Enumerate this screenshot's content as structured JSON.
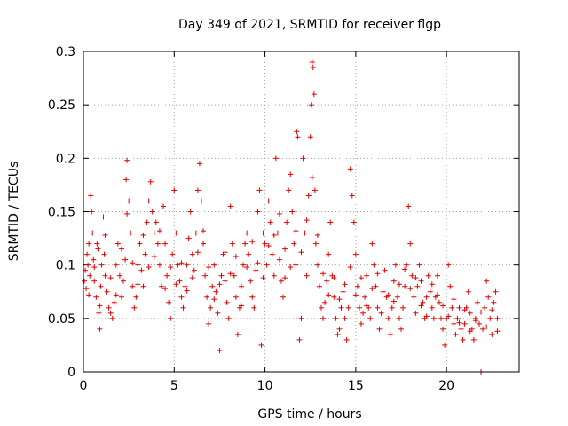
{
  "chart_data": {
    "type": "scatter",
    "title": "Day 349 of 2021, SRMTID for receiver flgp",
    "xlabel": "GPS time / hours",
    "ylabel": "SRMTID / TECUs",
    "xlim": [
      0,
      24
    ],
    "ylim": [
      0,
      0.3
    ],
    "x_ticks": [
      "0",
      "5",
      "10",
      "15",
      "20"
    ],
    "y_ticks": [
      "0",
      "0.05",
      "0.1",
      "0.15",
      "0.2",
      "0.25",
      "0.3"
    ],
    "grid": true,
    "legend": "none",
    "marker": "+",
    "color": "#e00000",
    "series": [
      {
        "points": [
          [
            0.05,
            0.085
          ],
          [
            0.1,
            0.095
          ],
          [
            0.15,
            0.078
          ],
          [
            0.2,
            0.11
          ],
          [
            0.25,
            0.1
          ],
          [
            0.3,
            0.12
          ],
          [
            0.35,
            0.09
          ],
          [
            0.4,
            0.165
          ],
          [
            0.45,
            0.15
          ],
          [
            0.5,
            0.13
          ],
          [
            0.55,
            0.105
          ],
          [
            0.6,
            0.085
          ],
          [
            0.7,
            0.07
          ],
          [
            0.75,
            0.12
          ],
          [
            0.8,
            0.115
          ],
          [
            0.85,
            0.055
          ],
          [
            0.9,
            0.04
          ],
          [
            0.95,
            0.08
          ],
          [
            1.0,
            0.1
          ],
          [
            1.1,
            0.145
          ],
          [
            1.15,
            0.11
          ],
          [
            1.2,
            0.09
          ],
          [
            1.3,
            0.075
          ],
          [
            1.4,
            0.06
          ],
          [
            1.5,
            0.055
          ],
          [
            1.6,
            0.05
          ],
          [
            1.7,
            0.065
          ],
          [
            1.8,
            0.1
          ],
          [
            1.9,
            0.12
          ],
          [
            2.0,
            0.09
          ],
          [
            2.1,
            0.07
          ],
          [
            2.2,
            0.085
          ],
          [
            2.3,
            0.105
          ],
          [
            2.35,
            0.18
          ],
          [
            2.4,
            0.198
          ],
          [
            2.5,
            0.16
          ],
          [
            2.6,
            0.13
          ],
          [
            2.7,
            0.08
          ],
          [
            2.8,
            0.06
          ],
          [
            2.9,
            0.07
          ],
          [
            3.0,
            0.1
          ],
          [
            3.1,
            0.12
          ],
          [
            3.2,
            0.095
          ],
          [
            3.3,
            0.08
          ],
          [
            3.4,
            0.11
          ],
          [
            3.5,
            0.14
          ],
          [
            3.6,
            0.16
          ],
          [
            3.7,
            0.178
          ],
          [
            3.8,
            0.15
          ],
          [
            3.9,
            0.13
          ],
          [
            4.0,
            0.14
          ],
          [
            4.1,
            0.12
          ],
          [
            4.2,
            0.1
          ],
          [
            4.3,
            0.08
          ],
          [
            4.4,
            0.155
          ],
          [
            4.5,
            0.12
          ],
          [
            4.6,
            0.09
          ],
          [
            4.7,
            0.065
          ],
          [
            4.8,
            0.05
          ],
          [
            4.9,
            0.11
          ],
          [
            5.0,
            0.17
          ],
          [
            5.1,
            0.13
          ],
          [
            5.2,
            0.1
          ],
          [
            5.3,
            0.085
          ],
          [
            5.4,
            0.07
          ],
          [
            5.5,
            0.06
          ],
          [
            5.6,
            0.08
          ],
          [
            5.7,
            0.1
          ],
          [
            5.8,
            0.125
          ],
          [
            5.9,
            0.15
          ],
          [
            6.0,
            0.11
          ],
          [
            6.1,
            0.095
          ],
          [
            6.2,
            0.13
          ],
          [
            6.3,
            0.17
          ],
          [
            6.4,
            0.195
          ],
          [
            6.5,
            0.16
          ],
          [
            6.6,
            0.12
          ],
          [
            6.7,
            0.09
          ],
          [
            6.8,
            0.07
          ],
          [
            6.9,
            0.045
          ],
          [
            7.0,
            0.06
          ],
          [
            7.1,
            0.08
          ],
          [
            7.2,
            0.1
          ],
          [
            7.3,
            0.075
          ],
          [
            7.4,
            0.055
          ],
          [
            7.5,
            0.02
          ],
          [
            7.6,
            0.09
          ],
          [
            7.7,
            0.11
          ],
          [
            7.8,
            0.085
          ],
          [
            7.9,
            0.065
          ],
          [
            8.0,
            0.05
          ],
          [
            8.1,
            0.155
          ],
          [
            8.2,
            0.12
          ],
          [
            8.3,
            0.09
          ],
          [
            8.4,
            0.07
          ],
          [
            8.5,
            0.035
          ],
          [
            8.6,
            0.06
          ],
          [
            8.7,
            0.08
          ],
          [
            8.8,
            0.1
          ],
          [
            8.9,
            0.12
          ],
          [
            9.0,
            0.13
          ],
          [
            9.1,
            0.11
          ],
          [
            9.2,
            0.085
          ],
          [
            9.3,
            0.07
          ],
          [
            9.4,
            0.06
          ],
          [
            9.5,
            0.095
          ],
          [
            9.6,
            0.15
          ],
          [
            9.7,
            0.17
          ],
          [
            9.8,
            0.025
          ],
          [
            9.9,
            0.13
          ],
          [
            10.0,
            0.12
          ],
          [
            10.1,
            0.1
          ],
          [
            10.2,
            0.16
          ],
          [
            10.3,
            0.14
          ],
          [
            10.4,
            0.11
          ],
          [
            10.5,
            0.09
          ],
          [
            10.6,
            0.2
          ],
          [
            10.7,
            0.13
          ],
          [
            10.8,
            0.105
          ],
          [
            10.9,
            0.085
          ],
          [
            11.0,
            0.07
          ],
          [
            11.1,
            0.115
          ],
          [
            11.2,
            0.14
          ],
          [
            11.3,
            0.17
          ],
          [
            11.4,
            0.185
          ],
          [
            11.5,
            0.15
          ],
          [
            11.6,
            0.12
          ],
          [
            11.7,
            0.1
          ],
          [
            11.75,
            0.225
          ],
          [
            11.8,
            0.22
          ],
          [
            11.9,
            0.03
          ],
          [
            12.0,
            0.05
          ],
          [
            12.1,
            0.2
          ],
          [
            12.2,
            0.13
          ],
          [
            12.3,
            0.09
          ],
          [
            12.4,
            0.165
          ],
          [
            12.5,
            0.22
          ],
          [
            12.55,
            0.25
          ],
          [
            12.6,
            0.29
          ],
          [
            12.65,
            0.285
          ],
          [
            12.7,
            0.26
          ],
          [
            12.75,
            0.17
          ],
          [
            12.8,
            0.12
          ],
          [
            12.9,
            0.1
          ],
          [
            13.0,
            0.08
          ],
          [
            13.1,
            0.06
          ],
          [
            13.2,
            0.05
          ],
          [
            13.3,
            0.065
          ],
          [
            13.4,
            0.085
          ],
          [
            13.5,
            0.11
          ],
          [
            13.6,
            0.14
          ],
          [
            13.7,
            0.09
          ],
          [
            13.8,
            0.07
          ],
          [
            13.9,
            0.05
          ],
          [
            14.0,
            0.035
          ],
          [
            14.1,
            0.04
          ],
          [
            14.2,
            0.06
          ],
          [
            14.3,
            0.075
          ],
          [
            14.4,
            0.05
          ],
          [
            14.5,
            0.03
          ],
          [
            14.6,
            0.06
          ],
          [
            14.7,
            0.19
          ],
          [
            14.8,
            0.165
          ],
          [
            14.9,
            0.14
          ],
          [
            15.0,
            0.11
          ],
          [
            15.1,
            0.08
          ],
          [
            15.2,
            0.06
          ],
          [
            15.3,
            0.045
          ],
          [
            15.4,
            0.055
          ],
          [
            15.5,
            0.07
          ],
          [
            15.6,
            0.09
          ],
          [
            15.7,
            0.06
          ],
          [
            15.8,
            0.05
          ],
          [
            15.9,
            0.12
          ],
          [
            16.0,
            0.1
          ],
          [
            16.1,
            0.08
          ],
          [
            16.2,
            0.06
          ],
          [
            16.3,
            0.04
          ],
          [
            16.4,
            0.055
          ],
          [
            16.5,
            0.075
          ],
          [
            16.6,
            0.095
          ],
          [
            16.7,
            0.07
          ],
          [
            16.8,
            0.05
          ],
          [
            16.9,
            0.035
          ],
          [
            17.0,
            0.06
          ],
          [
            17.1,
            0.085
          ],
          [
            17.2,
            0.1
          ],
          [
            17.3,
            0.07
          ],
          [
            17.4,
            0.05
          ],
          [
            17.5,
            0.04
          ],
          [
            17.6,
            0.06
          ],
          [
            17.7,
            0.08
          ],
          [
            17.8,
            0.1
          ],
          [
            17.9,
            0.155
          ],
          [
            18.0,
            0.12
          ],
          [
            18.1,
            0.09
          ],
          [
            18.2,
            0.07
          ],
          [
            18.3,
            0.055
          ],
          [
            18.4,
            0.08
          ],
          [
            18.5,
            0.1
          ],
          [
            18.6,
            0.085
          ],
          [
            18.7,
            0.065
          ],
          [
            18.8,
            0.05
          ],
          [
            18.9,
            0.07
          ],
          [
            19.0,
            0.09
          ],
          [
            19.1,
            0.075
          ],
          [
            19.2,
            0.06
          ],
          [
            19.3,
            0.05
          ],
          [
            19.4,
            0.07
          ],
          [
            19.5,
            0.09
          ],
          [
            19.6,
            0.065
          ],
          [
            19.7,
            0.05
          ],
          [
            19.8,
            0.04
          ],
          [
            19.9,
            0.025
          ],
          [
            20.0,
            0.05
          ],
          [
            20.1,
            0.1
          ],
          [
            20.2,
            0.08
          ],
          [
            20.3,
            0.06
          ],
          [
            20.4,
            0.045
          ],
          [
            20.5,
            0.035
          ],
          [
            20.6,
            0.05
          ],
          [
            20.7,
            0.06
          ],
          [
            20.8,
            0.04
          ],
          [
            20.9,
            0.03
          ],
          [
            21.0,
            0.045
          ],
          [
            21.1,
            0.06
          ],
          [
            21.2,
            0.075
          ],
          [
            21.3,
            0.055
          ],
          [
            21.4,
            0.04
          ],
          [
            21.5,
            0.03
          ],
          [
            21.6,
            0.05
          ],
          [
            21.7,
            0.065
          ],
          [
            21.8,
            0.045
          ],
          [
            21.9,
            0.0
          ],
          [
            22.0,
            0.04
          ],
          [
            22.1,
            0.06
          ],
          [
            22.2,
            0.085
          ],
          [
            22.3,
            0.07
          ],
          [
            22.4,
            0.05
          ],
          [
            22.5,
            0.035
          ],
          [
            22.6,
            0.065
          ],
          [
            22.7,
            0.075
          ],
          [
            22.8,
            0.05
          ],
          [
            0.3,
            0.072
          ],
          [
            0.6,
            0.098
          ],
          [
            0.9,
            0.062
          ],
          [
            1.2,
            0.128
          ],
          [
            1.5,
            0.088
          ],
          [
            1.8,
            0.072
          ],
          [
            2.1,
            0.115
          ],
          [
            2.4,
            0.148
          ],
          [
            2.7,
            0.102
          ],
          [
            3.0,
            0.082
          ],
          [
            3.3,
            0.128
          ],
          [
            3.6,
            0.098
          ],
          [
            3.9,
            0.108
          ],
          [
            4.2,
            0.132
          ],
          [
            4.5,
            0.078
          ],
          [
            4.8,
            0.098
          ],
          [
            5.1,
            0.082
          ],
          [
            5.4,
            0.102
          ],
          [
            5.7,
            0.076
          ],
          [
            6.0,
            0.088
          ],
          [
            6.3,
            0.112
          ],
          [
            6.6,
            0.132
          ],
          [
            6.9,
            0.098
          ],
          [
            7.2,
            0.068
          ],
          [
            7.5,
            0.082
          ],
          [
            7.8,
            0.112
          ],
          [
            8.1,
            0.092
          ],
          [
            8.4,
            0.108
          ],
          [
            8.7,
            0.062
          ],
          [
            9.0,
            0.098
          ],
          [
            9.3,
            0.122
          ],
          [
            9.6,
            0.102
          ],
          [
            9.9,
            0.088
          ],
          [
            10.2,
            0.118
          ],
          [
            10.5,
            0.128
          ],
          [
            10.8,
            0.148
          ],
          [
            11.1,
            0.088
          ],
          [
            11.4,
            0.098
          ],
          [
            11.7,
            0.132
          ],
          [
            12.0,
            0.112
          ],
          [
            12.3,
            0.142
          ],
          [
            12.6,
            0.182
          ],
          [
            12.9,
            0.128
          ],
          [
            13.2,
            0.092
          ],
          [
            13.5,
            0.072
          ],
          [
            13.8,
            0.088
          ],
          [
            14.1,
            0.068
          ],
          [
            14.4,
            0.082
          ],
          [
            14.7,
            0.098
          ],
          [
            15.0,
            0.072
          ],
          [
            15.3,
            0.088
          ],
          [
            15.6,
            0.062
          ],
          [
            15.9,
            0.078
          ],
          [
            16.2,
            0.092
          ],
          [
            16.5,
            0.056
          ],
          [
            16.8,
            0.072
          ],
          [
            17.1,
            0.066
          ],
          [
            17.4,
            0.082
          ],
          [
            17.7,
            0.096
          ],
          [
            18.0,
            0.078
          ],
          [
            18.3,
            0.088
          ],
          [
            18.6,
            0.062
          ],
          [
            18.9,
            0.052
          ],
          [
            19.2,
            0.082
          ],
          [
            19.5,
            0.072
          ],
          [
            19.8,
            0.062
          ],
          [
            20.1,
            0.052
          ],
          [
            20.4,
            0.068
          ],
          [
            20.7,
            0.046
          ],
          [
            21.0,
            0.058
          ],
          [
            21.3,
            0.038
          ],
          [
            21.6,
            0.048
          ],
          [
            21.9,
            0.056
          ],
          [
            22.2,
            0.042
          ],
          [
            22.5,
            0.058
          ],
          [
            22.8,
            0.038
          ]
        ]
      }
    ]
  }
}
